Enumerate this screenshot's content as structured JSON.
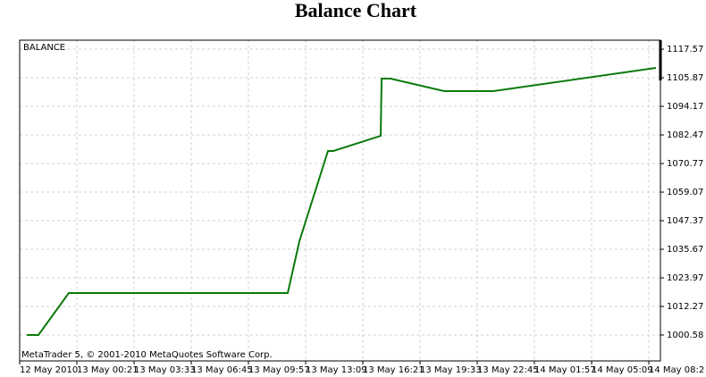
{
  "chart_data": {
    "type": "line",
    "title": "Balance Chart",
    "label": "BALANCE",
    "footer": "MetaTrader 5, © 2001-2010 MetaQuotes Software Corp.",
    "x": [
      0.4,
      1.05,
      2.75,
      15.0,
      15.65,
      17.25,
      17.55,
      20.2,
      20.25,
      20.75,
      23.75,
      26.5,
      35.6
    ],
    "series": [
      {
        "name": "BALANCE",
        "color": "#0a7a0a",
        "values": [
          1000.58,
          1000.58,
          1017.76,
          1017.76,
          1038.97,
          1075.9,
          1075.9,
          1082.11,
          1105.51,
          1105.51,
          1100.4,
          1100.4,
          1109.9
        ]
      }
    ],
    "xlim": [
      0,
      35.85
    ],
    "xticks": [
      {
        "value": 0,
        "label": "12 May 2010"
      },
      {
        "value": 3.2,
        "label": "13 May 00:21"
      },
      {
        "value": 6.4,
        "label": "13 May 03:33"
      },
      {
        "value": 9.6,
        "label": "13 May 06:45"
      },
      {
        "value": 12.8,
        "label": "13 May 09:57"
      },
      {
        "value": 16,
        "label": "13 May 13:09"
      },
      {
        "value": 19.2,
        "label": "13 May 16:21"
      },
      {
        "value": 22.4,
        "label": "13 May 19:33"
      },
      {
        "value": 25.6,
        "label": "13 May 22:45"
      },
      {
        "value": 28.8,
        "label": "14 May 01:57"
      },
      {
        "value": 32,
        "label": "14 May 05:09"
      },
      {
        "value": 35.2,
        "label": "14 May 08:2"
      }
    ],
    "ylim": [
      989.98,
      1121.24
    ],
    "yticks": [
      1000.58,
      1012.27,
      1023.97,
      1035.67,
      1047.37,
      1059.07,
      1070.77,
      1082.47,
      1094.17,
      1105.87,
      1117.57
    ],
    "grid": true
  }
}
